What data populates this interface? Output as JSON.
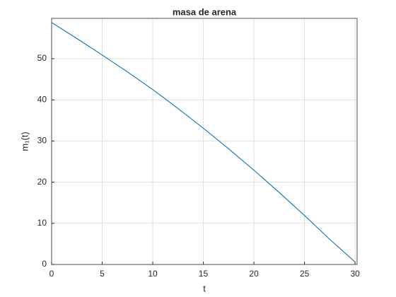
{
  "chart_data": {
    "type": "line",
    "title": "masa de arena",
    "xlabel": "t",
    "ylabel": "m₁(t)",
    "x": [
      0,
      2.5,
      5,
      7.5,
      10,
      12.5,
      15,
      17.5,
      20,
      22.5,
      25,
      27.5,
      30
    ],
    "series": [
      {
        "color": "#0072bd",
        "values": [
          58.8,
          54.9,
          50.9,
          46.8,
          42.5,
          37.9,
          33.1,
          28.1,
          22.9,
          17.5,
          11.9,
          6.1,
          0.6
        ]
      }
    ],
    "xlim": [
      0,
      30.2
    ],
    "ylim": [
      0,
      59.8
    ],
    "xticks": [
      0,
      5,
      10,
      15,
      20,
      25,
      30
    ],
    "yticks": [
      0,
      10,
      20,
      30,
      40,
      50
    ],
    "grid": true
  }
}
